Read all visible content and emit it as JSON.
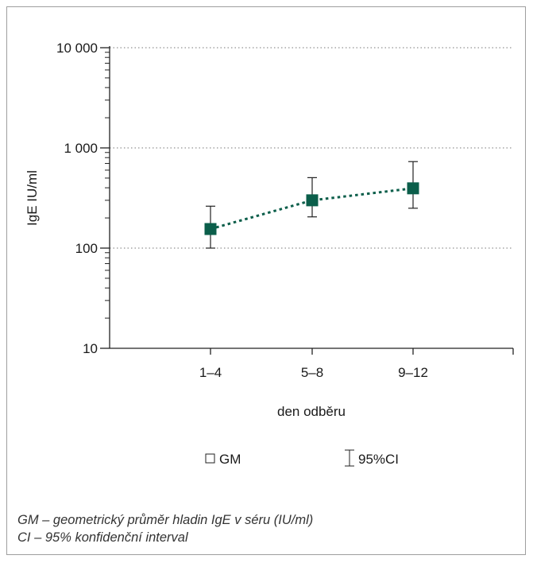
{
  "chart_data": {
    "type": "scatter",
    "categories": [
      "1–4",
      "5–8",
      "9–12"
    ],
    "series": [
      {
        "name": "GM",
        "values": [
          155,
          300,
          395
        ],
        "ci_low": [
          100,
          205,
          250
        ],
        "ci_high": [
          262,
          505,
          730
        ]
      }
    ],
    "xlabel": "den odběru",
    "ylabel": "IgE IU/ml",
    "yscale": "log",
    "ylim": [
      10,
      10000
    ],
    "yticks": [
      10,
      100,
      1000,
      10000
    ],
    "ytick_labels": [
      "10",
      "100",
      "1 000",
      "10 000"
    ],
    "grid": "dotted horizontal at major ticks",
    "legend": {
      "placement": "bottom",
      "items": [
        {
          "marker": "□",
          "label": "GM"
        },
        {
          "marker": "I",
          "label": "95%CI"
        }
      ]
    },
    "colors": {
      "marker": "#0b5e4a",
      "line": "#0b5e4a",
      "error_bar": "#222222",
      "grid": "#777777"
    }
  },
  "notes": [
    "GM – geometrický průměr hladin IgE v séru (IU/ml)",
    "CI – 95% konfidenční interval"
  ]
}
